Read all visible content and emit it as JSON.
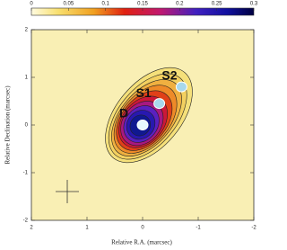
{
  "chart_data": {
    "type": "contour",
    "x_label": "Relative R.A. (marcsec)",
    "y_label": "Relative Declination (marcsec)",
    "xlim": [
      2,
      -2
    ],
    "xticks": [
      2,
      1,
      0,
      -1,
      -2
    ],
    "ylim": [
      -2,
      2
    ],
    "yticks": [
      2,
      1,
      0,
      -1,
      -2
    ],
    "colorbar": {
      "lim": [
        0,
        0.3
      ],
      "ticks": [
        0,
        0.05,
        0.1,
        0.15,
        0.2,
        0.25,
        0.3
      ]
    },
    "components": [
      {
        "label": "D",
        "x": 0,
        "y": 0
      },
      {
        "label": "S1",
        "x": -0.3,
        "y": 0.45
      },
      {
        "label": "S2",
        "x": -0.7,
        "y": 0.8
      }
    ]
  }
}
